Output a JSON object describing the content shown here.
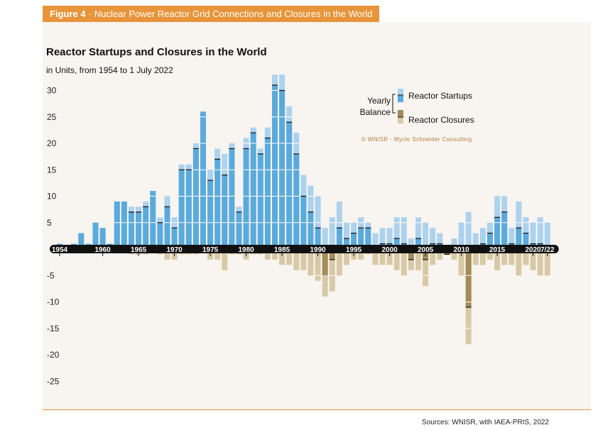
{
  "header": {
    "figure_label": "Figure 4",
    "separator": "·",
    "title": "Nuclear Power Reactor Grid Connections and Closures in the World"
  },
  "sources": "Sources: WNISR, with IAEA-PRIS, 2022",
  "colors": {
    "startups": "#5aaadc",
    "startups_light": "#acd2ee",
    "closures": "#a38c58",
    "closures_light": "#d8c9a6",
    "accent": "#e8943a"
  },
  "chart_data": {
    "type": "bar",
    "title": "Reactor Startups and Closures in the World",
    "subtitle": "in Units, from 1954 to 1 July 2022",
    "ylim": [
      -26,
      32
    ],
    "yticks": [
      30,
      25,
      20,
      15,
      10,
      5,
      -5,
      -10,
      -15,
      -20,
      -25
    ],
    "xtick_labels": [
      "1954",
      "1960",
      "1965",
      "1970",
      "1975",
      "1980",
      "1985",
      "1990",
      "1995",
      "2000",
      "2005",
      "2010",
      "2015",
      "2020",
      "7/22"
    ],
    "legend": {
      "group_label_1": "Yearly",
      "group_label_2": "Balance",
      "startups": "Reactor Startups",
      "closures": "Reactor Closures"
    },
    "watermark": "© WNISR - Mycle Schneider Consulting",
    "categories": [
      "1954",
      "1955",
      "1956",
      "1957",
      "1958",
      "1959",
      "1960",
      "1961",
      "1962",
      "1963",
      "1964",
      "1965",
      "1966",
      "1967",
      "1968",
      "1969",
      "1970",
      "1971",
      "1972",
      "1973",
      "1974",
      "1975",
      "1976",
      "1977",
      "1978",
      "1979",
      "1980",
      "1981",
      "1982",
      "1983",
      "1984",
      "1985",
      "1986",
      "1987",
      "1988",
      "1989",
      "1990",
      "1991",
      "1992",
      "1993",
      "1994",
      "1995",
      "1996",
      "1997",
      "1998",
      "1999",
      "2000",
      "2001",
      "2002",
      "2003",
      "2004",
      "2005",
      "2006",
      "2007",
      "2008",
      "2009",
      "2010",
      "2011",
      "2012",
      "2013",
      "2014",
      "2015",
      "2016",
      "2017",
      "2018",
      "2019",
      "2020",
      "2021",
      "2022"
    ],
    "series": [
      {
        "name": "Reactor Startups",
        "values": [
          1,
          0,
          1,
          3,
          1,
          5,
          4,
          1,
          9,
          9,
          8,
          8,
          9,
          11,
          6,
          10,
          6,
          16,
          16,
          20,
          26,
          15,
          19,
          18,
          20,
          8,
          21,
          23,
          19,
          23,
          33,
          33,
          27,
          22,
          14,
          12,
          10,
          4,
          6,
          9,
          5,
          5,
          6,
          5,
          3,
          4,
          4,
          6,
          6,
          2,
          6,
          5,
          4,
          3,
          0,
          2,
          5,
          7,
          3,
          4,
          5,
          10,
          10,
          4,
          9,
          6,
          5,
          6,
          5
        ]
      },
      {
        "name": "Reactor Closures",
        "values": [
          0,
          0,
          0,
          0,
          0,
          0,
          0,
          0,
          0,
          0,
          1,
          1,
          1,
          0,
          1,
          2,
          2,
          1,
          1,
          1,
          0,
          2,
          2,
          4,
          1,
          1,
          2,
          1,
          1,
          2,
          2,
          3,
          3,
          4,
          4,
          5,
          6,
          9,
          8,
          5,
          3,
          2,
          2,
          1,
          3,
          3,
          3,
          4,
          5,
          4,
          4,
          7,
          3,
          2,
          1,
          2,
          5,
          18,
          3,
          3,
          2,
          4,
          3,
          3,
          5,
          3,
          4,
          5,
          5
        ]
      },
      {
        "name": "Yearly Balance",
        "values": [
          1,
          0,
          1,
          3,
          1,
          5,
          4,
          1,
          9,
          9,
          7,
          7,
          8,
          11,
          5,
          8,
          4,
          15,
          15,
          19,
          26,
          13,
          17,
          14,
          19,
          7,
          19,
          22,
          18,
          21,
          31,
          30,
          24,
          18,
          10,
          7,
          4,
          -5,
          -2,
          4,
          2,
          3,
          4,
          4,
          0,
          1,
          1,
          2,
          1,
          -2,
          2,
          -2,
          1,
          1,
          -1,
          0,
          0,
          -11,
          0,
          1,
          3,
          6,
          7,
          1,
          4,
          3,
          1,
          1,
          0
        ]
      }
    ]
  }
}
